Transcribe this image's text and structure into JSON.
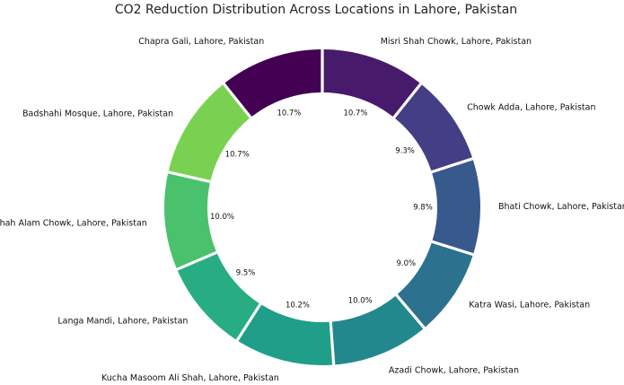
{
  "chart_data": {
    "type": "pie",
    "title": "CO2 Reduction Distribution Across Locations in Lahore, Pakistan",
    "donut": true,
    "start_angle_deg": 90,
    "direction": "clockwise",
    "categories": [
      "Misri Shah Chowk, Lahore, Pakistan",
      "Chowk Adda, Lahore, Pakistan",
      "Bhati Chowk, Lahore, Pakistan",
      "Katra Wasi, Lahore, Pakistan",
      "Azadi Chowk, Lahore, Pakistan",
      "Kucha Masoom Ali Shah, Lahore, Pakistan",
      "Langa Mandi, Lahore, Pakistan",
      "Shah Alam Chowk, Lahore, Pakistan",
      "Badshahi Mosque, Lahore, Pakistan",
      "Chapra Gali, Lahore, Pakistan"
    ],
    "values": [
      10.7,
      9.3,
      9.8,
      9.0,
      10.0,
      10.2,
      9.5,
      10.0,
      10.7,
      10.7
    ],
    "value_labels": [
      "10.7%",
      "9.3%",
      "9.8%",
      "9.0%",
      "10.0%",
      "10.2%",
      "9.5%",
      "10.0%",
      "10.7%",
      "10.7%"
    ],
    "colors": [
      "#481a6c",
      "#433e85",
      "#38598c",
      "#2c728e",
      "#23888e",
      "#1f9e89",
      "#27ad81",
      "#4ac16d",
      "#7ad151",
      "#440154"
    ],
    "legend": "none"
  }
}
